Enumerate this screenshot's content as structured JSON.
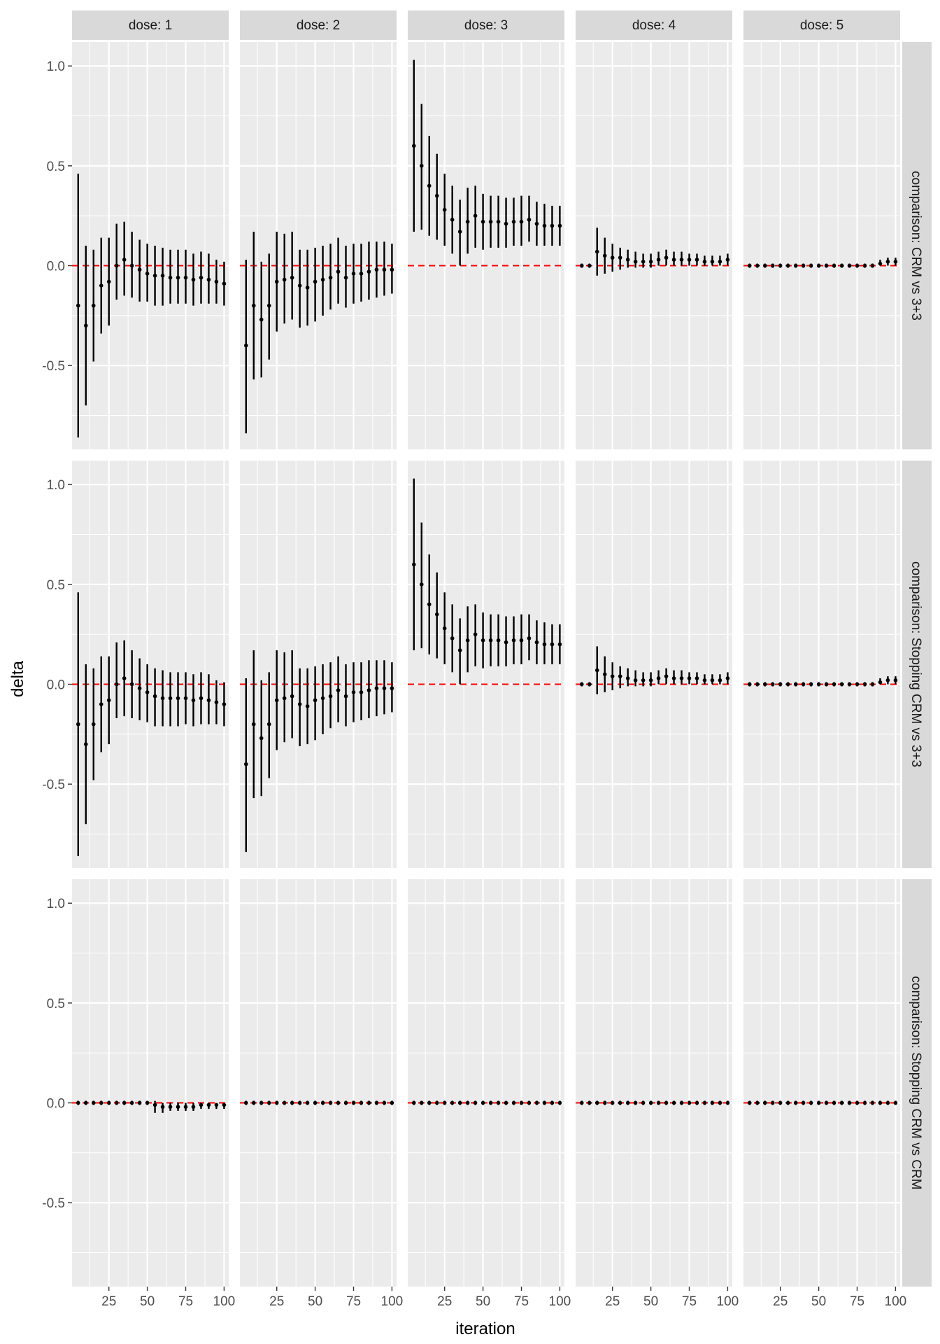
{
  "chart_data": {
    "type": "errorbar-facet",
    "xlabel": "iteration",
    "ylabel": "delta",
    "xlim": [
      1,
      103
    ],
    "ylim": [
      -0.92,
      1.12
    ],
    "x_ticks": [
      25,
      50,
      75,
      100
    ],
    "y_ticks": [
      -0.5,
      0.0,
      0.5,
      1.0
    ],
    "y_tick_labels": [
      "-0.5",
      "0.0",
      "0.5",
      "1.0"
    ],
    "reference_line": {
      "y": 0,
      "color": "#ff0000",
      "style": "dashed"
    },
    "colors": {
      "panel_bg": "#ebebeb",
      "grid": "#ffffff",
      "strip_bg": "#d9d9d9",
      "mark": "#000000"
    },
    "x": [
      5,
      10,
      15,
      20,
      25,
      30,
      35,
      40,
      45,
      50,
      55,
      60,
      65,
      70,
      75,
      80,
      85,
      90,
      95,
      100
    ],
    "columns": [
      "dose: 1",
      "dose: 2",
      "dose: 3",
      "dose: 4",
      "dose: 5"
    ],
    "rows": [
      "comparison: CRM vs 3+3",
      "comparison: Stopping CRM vs 3+3",
      "comparison: Stopping CRM vs CRM"
    ],
    "panels": [
      {
        "row": 0,
        "col": 0,
        "estimate": [
          -0.2,
          -0.3,
          -0.2,
          -0.1,
          -0.08,
          0.0,
          0.03,
          0.0,
          -0.02,
          -0.04,
          -0.05,
          -0.05,
          -0.06,
          -0.06,
          -0.06,
          -0.07,
          -0.06,
          -0.07,
          -0.08,
          -0.09
        ],
        "lower": [
          -0.86,
          -0.7,
          -0.48,
          -0.34,
          -0.3,
          -0.17,
          -0.15,
          -0.16,
          -0.18,
          -0.18,
          -0.2,
          -0.2,
          -0.19,
          -0.19,
          -0.19,
          -0.2,
          -0.19,
          -0.19,
          -0.19,
          -0.2
        ],
        "upper": [
          0.46,
          0.1,
          0.08,
          0.14,
          0.14,
          0.21,
          0.22,
          0.17,
          0.13,
          0.11,
          0.1,
          0.09,
          0.08,
          0.08,
          0.08,
          0.06,
          0.07,
          0.06,
          0.03,
          0.02
        ]
      },
      {
        "row": 0,
        "col": 1,
        "estimate": [
          -0.4,
          -0.2,
          -0.27,
          -0.2,
          -0.08,
          -0.07,
          -0.06,
          -0.1,
          -0.11,
          -0.08,
          -0.07,
          -0.06,
          -0.03,
          -0.06,
          -0.04,
          -0.04,
          -0.03,
          -0.02,
          -0.02,
          -0.02
        ],
        "lower": [
          -0.84,
          -0.57,
          -0.56,
          -0.47,
          -0.33,
          -0.29,
          -0.27,
          -0.31,
          -0.3,
          -0.28,
          -0.25,
          -0.22,
          -0.19,
          -0.21,
          -0.19,
          -0.18,
          -0.17,
          -0.16,
          -0.15,
          -0.14
        ],
        "upper": [
          0.03,
          0.17,
          0.02,
          0.06,
          0.17,
          0.16,
          0.17,
          0.08,
          0.08,
          0.09,
          0.1,
          0.11,
          0.14,
          0.1,
          0.11,
          0.11,
          0.12,
          0.12,
          0.12,
          0.11
        ]
      },
      {
        "row": 0,
        "col": 2,
        "estimate": [
          0.6,
          0.5,
          0.4,
          0.35,
          0.28,
          0.23,
          0.17,
          0.22,
          0.25,
          0.22,
          0.22,
          0.22,
          0.21,
          0.22,
          0.22,
          0.23,
          0.21,
          0.2,
          0.2,
          0.2
        ],
        "lower": [
          0.17,
          0.18,
          0.15,
          0.13,
          0.1,
          0.06,
          0.0,
          0.06,
          0.09,
          0.08,
          0.09,
          0.09,
          0.09,
          0.1,
          0.1,
          0.12,
          0.1,
          0.1,
          0.1,
          0.1
        ],
        "upper": [
          1.03,
          0.81,
          0.65,
          0.56,
          0.46,
          0.4,
          0.33,
          0.39,
          0.4,
          0.36,
          0.35,
          0.35,
          0.34,
          0.34,
          0.35,
          0.35,
          0.32,
          0.31,
          0.3,
          0.3
        ]
      },
      {
        "row": 0,
        "col": 3,
        "estimate": [
          0.0,
          0.0,
          0.07,
          0.05,
          0.04,
          0.04,
          0.03,
          0.02,
          0.02,
          0.02,
          0.03,
          0.04,
          0.03,
          0.03,
          0.03,
          0.03,
          0.02,
          0.02,
          0.02,
          0.03
        ],
        "lower": [
          0.0,
          0.0,
          -0.05,
          -0.04,
          -0.03,
          -0.02,
          -0.01,
          -0.01,
          -0.01,
          -0.01,
          0.0,
          0.0,
          0.0,
          0.0,
          0.0,
          0.0,
          0.0,
          0.0,
          0.0,
          0.0
        ],
        "upper": [
          0.0,
          0.0,
          0.19,
          0.14,
          0.11,
          0.09,
          0.08,
          0.07,
          0.06,
          0.06,
          0.07,
          0.08,
          0.07,
          0.07,
          0.06,
          0.06,
          0.05,
          0.05,
          0.05,
          0.06
        ]
      },
      {
        "row": 0,
        "col": 4,
        "estimate": [
          0.0,
          0.0,
          0.0,
          0.0,
          0.0,
          0.0,
          0.0,
          0.0,
          0.0,
          0.0,
          0.0,
          0.0,
          0.0,
          0.0,
          0.0,
          0.0,
          0.0,
          0.01,
          0.02,
          0.02
        ],
        "lower": [
          0.0,
          0.0,
          0.0,
          0.0,
          0.0,
          0.0,
          0.0,
          0.0,
          0.0,
          0.0,
          0.0,
          0.0,
          0.0,
          0.0,
          0.0,
          0.0,
          0.0,
          0.0,
          0.0,
          0.0
        ],
        "upper": [
          0.0,
          0.0,
          0.0,
          0.0,
          0.0,
          0.0,
          0.0,
          0.0,
          0.0,
          0.0,
          0.0,
          0.0,
          0.0,
          0.0,
          0.0,
          0.0,
          0.0,
          0.03,
          0.04,
          0.04
        ]
      },
      {
        "row": 1,
        "col": 0,
        "estimate": [
          -0.2,
          -0.3,
          -0.2,
          -0.1,
          -0.08,
          0.0,
          0.03,
          0.0,
          -0.02,
          -0.04,
          -0.06,
          -0.07,
          -0.07,
          -0.07,
          -0.07,
          -0.08,
          -0.07,
          -0.08,
          -0.09,
          -0.1
        ],
        "lower": [
          -0.86,
          -0.7,
          -0.48,
          -0.34,
          -0.3,
          -0.17,
          -0.16,
          -0.17,
          -0.18,
          -0.19,
          -0.21,
          -0.21,
          -0.21,
          -0.21,
          -0.2,
          -0.21,
          -0.2,
          -0.2,
          -0.2,
          -0.21
        ],
        "upper": [
          0.46,
          0.1,
          0.08,
          0.14,
          0.14,
          0.21,
          0.22,
          0.17,
          0.13,
          0.1,
          0.08,
          0.07,
          0.06,
          0.06,
          0.06,
          0.05,
          0.06,
          0.05,
          0.02,
          0.01
        ]
      },
      {
        "row": 1,
        "col": 1,
        "estimate": [
          -0.4,
          -0.2,
          -0.27,
          -0.2,
          -0.08,
          -0.07,
          -0.06,
          -0.1,
          -0.11,
          -0.08,
          -0.07,
          -0.06,
          -0.03,
          -0.06,
          -0.04,
          -0.04,
          -0.03,
          -0.02,
          -0.02,
          -0.02
        ],
        "lower": [
          -0.84,
          -0.57,
          -0.56,
          -0.47,
          -0.33,
          -0.29,
          -0.27,
          -0.31,
          -0.3,
          -0.28,
          -0.25,
          -0.22,
          -0.19,
          -0.21,
          -0.19,
          -0.18,
          -0.17,
          -0.16,
          -0.15,
          -0.14
        ],
        "upper": [
          0.03,
          0.17,
          0.02,
          0.06,
          0.17,
          0.16,
          0.17,
          0.08,
          0.08,
          0.09,
          0.1,
          0.11,
          0.14,
          0.1,
          0.11,
          0.11,
          0.12,
          0.12,
          0.12,
          0.11
        ]
      },
      {
        "row": 1,
        "col": 2,
        "estimate": [
          0.6,
          0.5,
          0.4,
          0.35,
          0.28,
          0.23,
          0.17,
          0.22,
          0.25,
          0.22,
          0.22,
          0.22,
          0.21,
          0.22,
          0.22,
          0.23,
          0.21,
          0.2,
          0.2,
          0.2
        ],
        "lower": [
          0.17,
          0.18,
          0.15,
          0.13,
          0.1,
          0.06,
          0.0,
          0.06,
          0.09,
          0.08,
          0.09,
          0.09,
          0.09,
          0.1,
          0.1,
          0.12,
          0.1,
          0.1,
          0.1,
          0.1
        ],
        "upper": [
          1.03,
          0.81,
          0.65,
          0.56,
          0.46,
          0.4,
          0.33,
          0.39,
          0.4,
          0.36,
          0.35,
          0.35,
          0.34,
          0.34,
          0.35,
          0.35,
          0.32,
          0.31,
          0.3,
          0.3
        ]
      },
      {
        "row": 1,
        "col": 3,
        "estimate": [
          0.0,
          0.0,
          0.07,
          0.05,
          0.04,
          0.04,
          0.03,
          0.02,
          0.02,
          0.02,
          0.03,
          0.04,
          0.03,
          0.03,
          0.03,
          0.03,
          0.02,
          0.02,
          0.02,
          0.03
        ],
        "lower": [
          0.0,
          0.0,
          -0.05,
          -0.04,
          -0.03,
          -0.02,
          -0.01,
          -0.01,
          -0.01,
          -0.01,
          0.0,
          0.0,
          0.0,
          0.0,
          0.0,
          0.0,
          0.0,
          0.0,
          0.0,
          0.0
        ],
        "upper": [
          0.0,
          0.0,
          0.19,
          0.14,
          0.11,
          0.09,
          0.08,
          0.07,
          0.06,
          0.06,
          0.07,
          0.08,
          0.07,
          0.07,
          0.06,
          0.06,
          0.05,
          0.05,
          0.05,
          0.06
        ]
      },
      {
        "row": 1,
        "col": 4,
        "estimate": [
          0.0,
          0.0,
          0.0,
          0.0,
          0.0,
          0.0,
          0.0,
          0.0,
          0.0,
          0.0,
          0.0,
          0.0,
          0.0,
          0.0,
          0.0,
          0.0,
          0.0,
          0.01,
          0.02,
          0.02
        ],
        "lower": [
          0.0,
          0.0,
          0.0,
          0.0,
          0.0,
          0.0,
          0.0,
          0.0,
          0.0,
          0.0,
          0.0,
          0.0,
          0.0,
          0.0,
          0.0,
          0.0,
          0.0,
          0.0,
          0.0,
          0.0
        ],
        "upper": [
          0.0,
          0.0,
          0.0,
          0.0,
          0.0,
          0.0,
          0.0,
          0.0,
          0.0,
          0.0,
          0.0,
          0.0,
          0.0,
          0.0,
          0.0,
          0.0,
          0.0,
          0.03,
          0.04,
          0.04
        ]
      },
      {
        "row": 2,
        "col": 0,
        "estimate": [
          0.0,
          0.0,
          0.0,
          0.0,
          0.0,
          0.0,
          0.0,
          0.0,
          0.0,
          0.0,
          -0.01,
          -0.02,
          -0.02,
          -0.02,
          -0.02,
          -0.02,
          -0.01,
          -0.01,
          -0.01,
          -0.01
        ],
        "lower": [
          0.0,
          0.0,
          0.0,
          0.0,
          0.0,
          0.0,
          0.0,
          0.0,
          0.0,
          0.0,
          -0.05,
          -0.05,
          -0.04,
          -0.04,
          -0.04,
          -0.04,
          -0.03,
          -0.03,
          -0.03,
          -0.03
        ],
        "upper": [
          0.0,
          0.0,
          0.0,
          0.0,
          0.0,
          0.0,
          0.0,
          0.0,
          0.0,
          0.0,
          0.01,
          0.0,
          0.0,
          0.0,
          0.0,
          0.0,
          0.0,
          0.0,
          0.0,
          0.0
        ]
      },
      {
        "row": 2,
        "col": 1,
        "estimate": [
          0.0,
          0.0,
          0.0,
          0.0,
          0.0,
          0.0,
          0.0,
          0.0,
          0.0,
          0.0,
          0.0,
          0.0,
          0.0,
          0.0,
          0.0,
          0.0,
          0.0,
          0.0,
          0.0,
          0.0
        ],
        "lower": [
          0.0,
          0.0,
          0.0,
          0.0,
          0.0,
          0.0,
          0.0,
          0.0,
          0.0,
          0.0,
          0.0,
          0.0,
          0.0,
          0.0,
          0.0,
          0.0,
          0.0,
          0.0,
          0.0,
          0.0
        ],
        "upper": [
          0.0,
          0.0,
          0.0,
          0.0,
          0.0,
          0.0,
          0.0,
          0.0,
          0.0,
          0.0,
          0.0,
          0.0,
          0.0,
          0.0,
          0.0,
          0.0,
          0.0,
          0.0,
          0.0,
          0.0
        ]
      },
      {
        "row": 2,
        "col": 2,
        "estimate": [
          0.0,
          0.0,
          0.0,
          0.0,
          0.0,
          0.0,
          0.0,
          0.0,
          0.0,
          0.0,
          0.0,
          0.0,
          0.0,
          0.0,
          0.0,
          0.0,
          0.0,
          0.0,
          0.0,
          0.0
        ],
        "lower": [
          0.0,
          0.0,
          0.0,
          0.0,
          0.0,
          0.0,
          0.0,
          0.0,
          0.0,
          0.0,
          0.0,
          0.0,
          0.0,
          0.0,
          0.0,
          0.0,
          0.0,
          0.0,
          0.0,
          0.0
        ],
        "upper": [
          0.0,
          0.0,
          0.0,
          0.0,
          0.0,
          0.0,
          0.0,
          0.0,
          0.0,
          0.0,
          0.0,
          0.0,
          0.0,
          0.0,
          0.0,
          0.0,
          0.0,
          0.0,
          0.0,
          0.0
        ]
      },
      {
        "row": 2,
        "col": 3,
        "estimate": [
          0.0,
          0.0,
          0.0,
          0.0,
          0.0,
          0.0,
          0.0,
          0.0,
          0.0,
          0.0,
          0.0,
          0.0,
          0.0,
          0.0,
          0.0,
          0.0,
          0.0,
          0.0,
          0.0,
          0.0
        ],
        "lower": [
          0.0,
          0.0,
          0.0,
          0.0,
          0.0,
          0.0,
          0.0,
          0.0,
          0.0,
          0.0,
          0.0,
          0.0,
          0.0,
          0.0,
          0.0,
          0.0,
          0.0,
          0.0,
          0.0,
          0.0
        ],
        "upper": [
          0.0,
          0.0,
          0.0,
          0.0,
          0.0,
          0.0,
          0.0,
          0.0,
          0.0,
          0.0,
          0.0,
          0.0,
          0.0,
          0.0,
          0.0,
          0.0,
          0.0,
          0.0,
          0.0,
          0.0
        ]
      },
      {
        "row": 2,
        "col": 4,
        "estimate": [
          0.0,
          0.0,
          0.0,
          0.0,
          0.0,
          0.0,
          0.0,
          0.0,
          0.0,
          0.0,
          0.0,
          0.0,
          0.0,
          0.0,
          0.0,
          0.0,
          0.0,
          0.0,
          0.0,
          0.0
        ],
        "lower": [
          0.0,
          0.0,
          0.0,
          0.0,
          0.0,
          0.0,
          0.0,
          0.0,
          0.0,
          0.0,
          0.0,
          0.0,
          0.0,
          0.0,
          0.0,
          0.0,
          0.0,
          0.0,
          0.0,
          0.0
        ],
        "upper": [
          0.0,
          0.0,
          0.0,
          0.0,
          0.0,
          0.0,
          0.0,
          0.0,
          0.0,
          0.0,
          0.0,
          0.0,
          0.0,
          0.0,
          0.0,
          0.0,
          0.0,
          0.0,
          0.0,
          0.0
        ]
      }
    ]
  }
}
